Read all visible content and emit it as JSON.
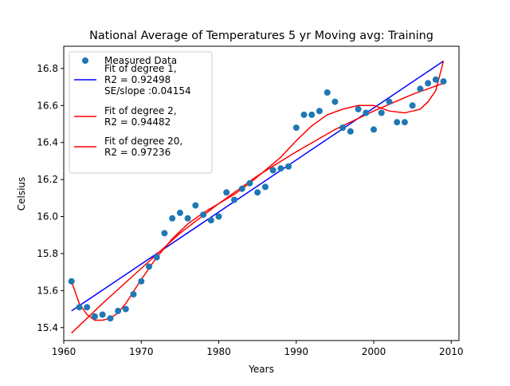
{
  "chart_data": {
    "type": "scatter",
    "title": "National Average of Temperatures 5 yr Moving avg: Training",
    "xlabel": "Years",
    "ylabel": "Celsius",
    "xlim": [
      1960,
      2011
    ],
    "ylim": [
      15.33,
      16.92
    ],
    "xticks": [
      1960,
      1970,
      1980,
      1990,
      2000,
      2010
    ],
    "yticks": [
      15.4,
      15.6,
      15.8,
      16.0,
      16.2,
      16.4,
      16.6,
      16.8
    ],
    "grid": false,
    "legend_position": "top-left",
    "measured": {
      "name": "Measured Data",
      "color": "#1f77b4",
      "x": [
        1961,
        1962,
        1963,
        1964,
        1965,
        1966,
        1967,
        1968,
        1969,
        1970,
        1971,
        1972,
        1973,
        1974,
        1975,
        1976,
        1977,
        1978,
        1979,
        1980,
        1981,
        1982,
        1983,
        1984,
        1985,
        1986,
        1987,
        1988,
        1989,
        1990,
        1991,
        1992,
        1993,
        1994,
        1995,
        1996,
        1997,
        1998,
        1999,
        2000,
        2001,
        2002,
        2003,
        2004,
        2005,
        2006,
        2007,
        2008,
        2009
      ],
      "y": [
        15.65,
        15.51,
        15.51,
        15.46,
        15.47,
        15.45,
        15.49,
        15.5,
        15.58,
        15.65,
        15.73,
        15.78,
        15.91,
        15.99,
        16.02,
        15.99,
        16.06,
        16.01,
        15.98,
        16.0,
        16.13,
        16.09,
        16.15,
        16.18,
        16.13,
        16.16,
        16.25,
        16.26,
        16.27,
        16.48,
        16.55,
        16.55,
        16.57,
        16.67,
        16.62,
        16.48,
        16.46,
        16.58,
        16.56,
        16.47,
        16.56,
        16.62,
        16.51,
        16.51,
        16.6,
        16.69,
        16.72,
        16.74,
        16.73
      ]
    },
    "fits": [
      {
        "name": "Fit of degree 1,\n R2 = 0.92498\n SE/slope :0.04154",
        "label_lines": [
          "Fit of degree 1,",
          " R2 = 0.92498",
          " SE/slope :0.04154"
        ],
        "color": "#0000ff",
        "x": [
          1961,
          2009
        ],
        "y": [
          15.49,
          16.84
        ]
      },
      {
        "name": "Fit of degree 2,\n R2 = 0.94482",
        "label_lines": [
          "Fit of degree 2,",
          " R2 = 0.94482"
        ],
        "color": "#ff0000",
        "x": [
          1961,
          1965,
          1970,
          1975,
          1980,
          1985,
          1990,
          1995,
          2000,
          2005,
          2009
        ],
        "y": [
          15.37,
          15.53,
          15.72,
          15.91,
          16.07,
          16.22,
          16.35,
          16.47,
          16.57,
          16.66,
          16.72
        ]
      },
      {
        "name": "Fit of degree 20,\n R2 = 0.97236",
        "label_lines": [
          "Fit of degree 20,",
          " R2 = 0.97236"
        ],
        "color": "#ff0000",
        "x": [
          1961,
          1962,
          1963,
          1964,
          1965,
          1966,
          1967,
          1968,
          1970,
          1972,
          1974,
          1976,
          1978,
          1980,
          1982,
          1984,
          1986,
          1988,
          1990,
          1992,
          1994,
          1996,
          1998,
          2000,
          2002,
          2004,
          2005,
          2006,
          2007,
          2008,
          2009
        ],
        "y": [
          15.65,
          15.53,
          15.47,
          15.44,
          15.44,
          15.45,
          15.48,
          15.53,
          15.66,
          15.78,
          15.88,
          15.96,
          16.02,
          16.07,
          16.12,
          16.18,
          16.25,
          16.32,
          16.41,
          16.49,
          16.55,
          16.58,
          16.6,
          16.6,
          16.57,
          16.56,
          16.57,
          16.58,
          16.62,
          16.68,
          16.84
        ]
      }
    ]
  }
}
